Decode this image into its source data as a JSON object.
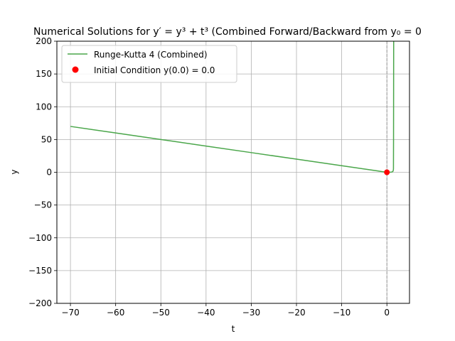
{
  "chart_data": {
    "type": "line",
    "title": "Numerical Solutions for y′ = y³ + t³ (Combined Forward/Backward from y₀ = 0",
    "xlabel": "t",
    "ylabel": "y",
    "xlim": [
      -73,
      5
    ],
    "ylim": [
      -200,
      200
    ],
    "x_ticks": [
      -70,
      -60,
      -50,
      -40,
      -30,
      -20,
      -10,
      0
    ],
    "y_ticks": [
      -200,
      -150,
      -100,
      -50,
      0,
      50,
      100,
      150,
      200
    ],
    "x_tick_labels": [
      "−70",
      "−60",
      "−50",
      "−40",
      "−30",
      "−20",
      "−10",
      "0"
    ],
    "y_tick_labels": [
      "−200",
      "−150",
      "−100",
      "−50",
      "0",
      "50",
      "100",
      "150",
      "200"
    ],
    "grid": true,
    "legend_position": "top-left",
    "series": [
      {
        "name": "Runge-Kutta 4 (Combined)",
        "color": "#4aa64a",
        "x": [
          -70,
          -60,
          -50,
          -40,
          -30,
          -20,
          -10,
          -5,
          -2,
          -1,
          0,
          0.5,
          1.0,
          1.3,
          1.4,
          1.45,
          1.47,
          1.5
        ],
        "y": [
          70,
          60,
          50,
          40,
          30,
          20,
          10,
          5,
          2,
          1,
          0,
          0.01,
          0.25,
          1.0,
          2.5,
          5,
          50,
          200
        ]
      }
    ],
    "initial_condition": {
      "label": "Initial Condition y(0.0) = 0.0",
      "t": 0.0,
      "y": 0.0,
      "color": "#ff0000"
    },
    "reference_line": {
      "x": 0,
      "style": "dashed",
      "color": "#888888"
    }
  }
}
